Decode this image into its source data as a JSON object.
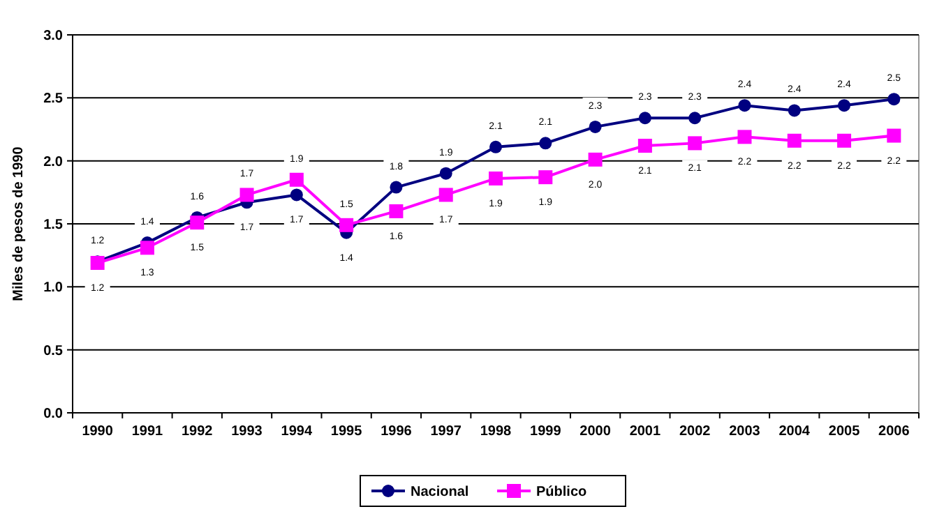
{
  "chart_data": {
    "type": "line",
    "ylabel": "Miles de pesos de 1990",
    "categories": [
      "1990",
      "1991",
      "1992",
      "1993",
      "1994",
      "1995",
      "1996",
      "1997",
      "1998",
      "1999",
      "2000",
      "2001",
      "2002",
      "2003",
      "2004",
      "2005",
      "2006"
    ],
    "ylim": [
      0,
      3
    ],
    "yticks": [
      {
        "value": 0,
        "label": "0.0"
      },
      {
        "value": 0.5,
        "label": "0.5"
      },
      {
        "value": 1,
        "label": "1.0"
      },
      {
        "value": 1.5,
        "label": "1.5"
      },
      {
        "value": 2,
        "label": "2.0"
      },
      {
        "value": 2.5,
        "label": "2.5"
      },
      {
        "value": 3,
        "label": "3.0"
      }
    ],
    "grid": "y",
    "legend": "bottom",
    "series": [
      {
        "name": "Nacional",
        "color": "#000080",
        "marker": "circle",
        "values": [
          1.2,
          1.35,
          1.55,
          1.67,
          1.73,
          1.43,
          1.79,
          1.9,
          2.11,
          2.14,
          2.27,
          2.34,
          2.34,
          2.44,
          2.4,
          2.44,
          2.49
        ],
        "value_labels": [
          "1.2",
          "1.4",
          "1.6",
          "1.7",
          "1.7",
          "1.4",
          "1.8",
          "1.9",
          "2.1",
          "2.1",
          "2.3",
          "2.3",
          "2.3",
          "2.4",
          "2.4",
          "2.4",
          "2.5"
        ]
      },
      {
        "name": "Público",
        "color": "#ff00ff",
        "marker": "square",
        "values": [
          1.19,
          1.31,
          1.51,
          1.73,
          1.85,
          1.49,
          1.6,
          1.73,
          1.86,
          1.87,
          2.01,
          2.12,
          2.14,
          2.19,
          2.16,
          2.16,
          2.2
        ],
        "value_labels": [
          "1.2",
          "1.3",
          "1.5",
          "1.7",
          "1.9",
          "1.5",
          "1.6",
          "1.7",
          "1.9",
          "1.9",
          "2.0",
          "2.1",
          "2.1",
          "2.2",
          "2.2",
          "2.2",
          "2.2"
        ]
      }
    ]
  }
}
